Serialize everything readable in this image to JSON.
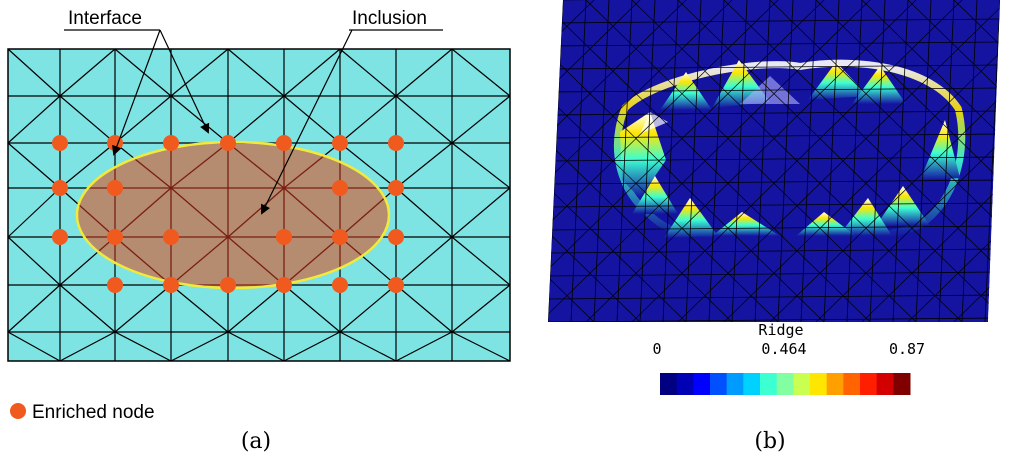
{
  "panel_a": {
    "labels": {
      "interface": "Interface",
      "inclusion": "Inclusion"
    },
    "legend": {
      "marker_label": "Enriched node"
    },
    "caption": "(a)",
    "colors": {
      "matrix_fill": "#7ee3e3",
      "inclusion_fill": "#b58c6f",
      "interface_stroke": "#f2ea3a",
      "mesh_stroke": "#000000",
      "inner_mesh_stroke": "#7a1f12",
      "enriched_node": "#f05a1e"
    }
  },
  "panel_b": {
    "colorbar": {
      "title": "Ridge",
      "ticks": [
        "0",
        "0.464",
        "0.87"
      ],
      "colors": [
        "#000080",
        "#0000b4",
        "#0000ff",
        "#0050ff",
        "#009bff",
        "#00d2ff",
        "#3cffd2",
        "#82ffa0",
        "#c8ff50",
        "#ffe600",
        "#ffa000",
        "#ff6400",
        "#ff1e00",
        "#d20000",
        "#800000"
      ]
    },
    "caption": "(b)",
    "colors": {
      "surface": "#1414a0",
      "mesh_stroke": "#000000"
    }
  }
}
